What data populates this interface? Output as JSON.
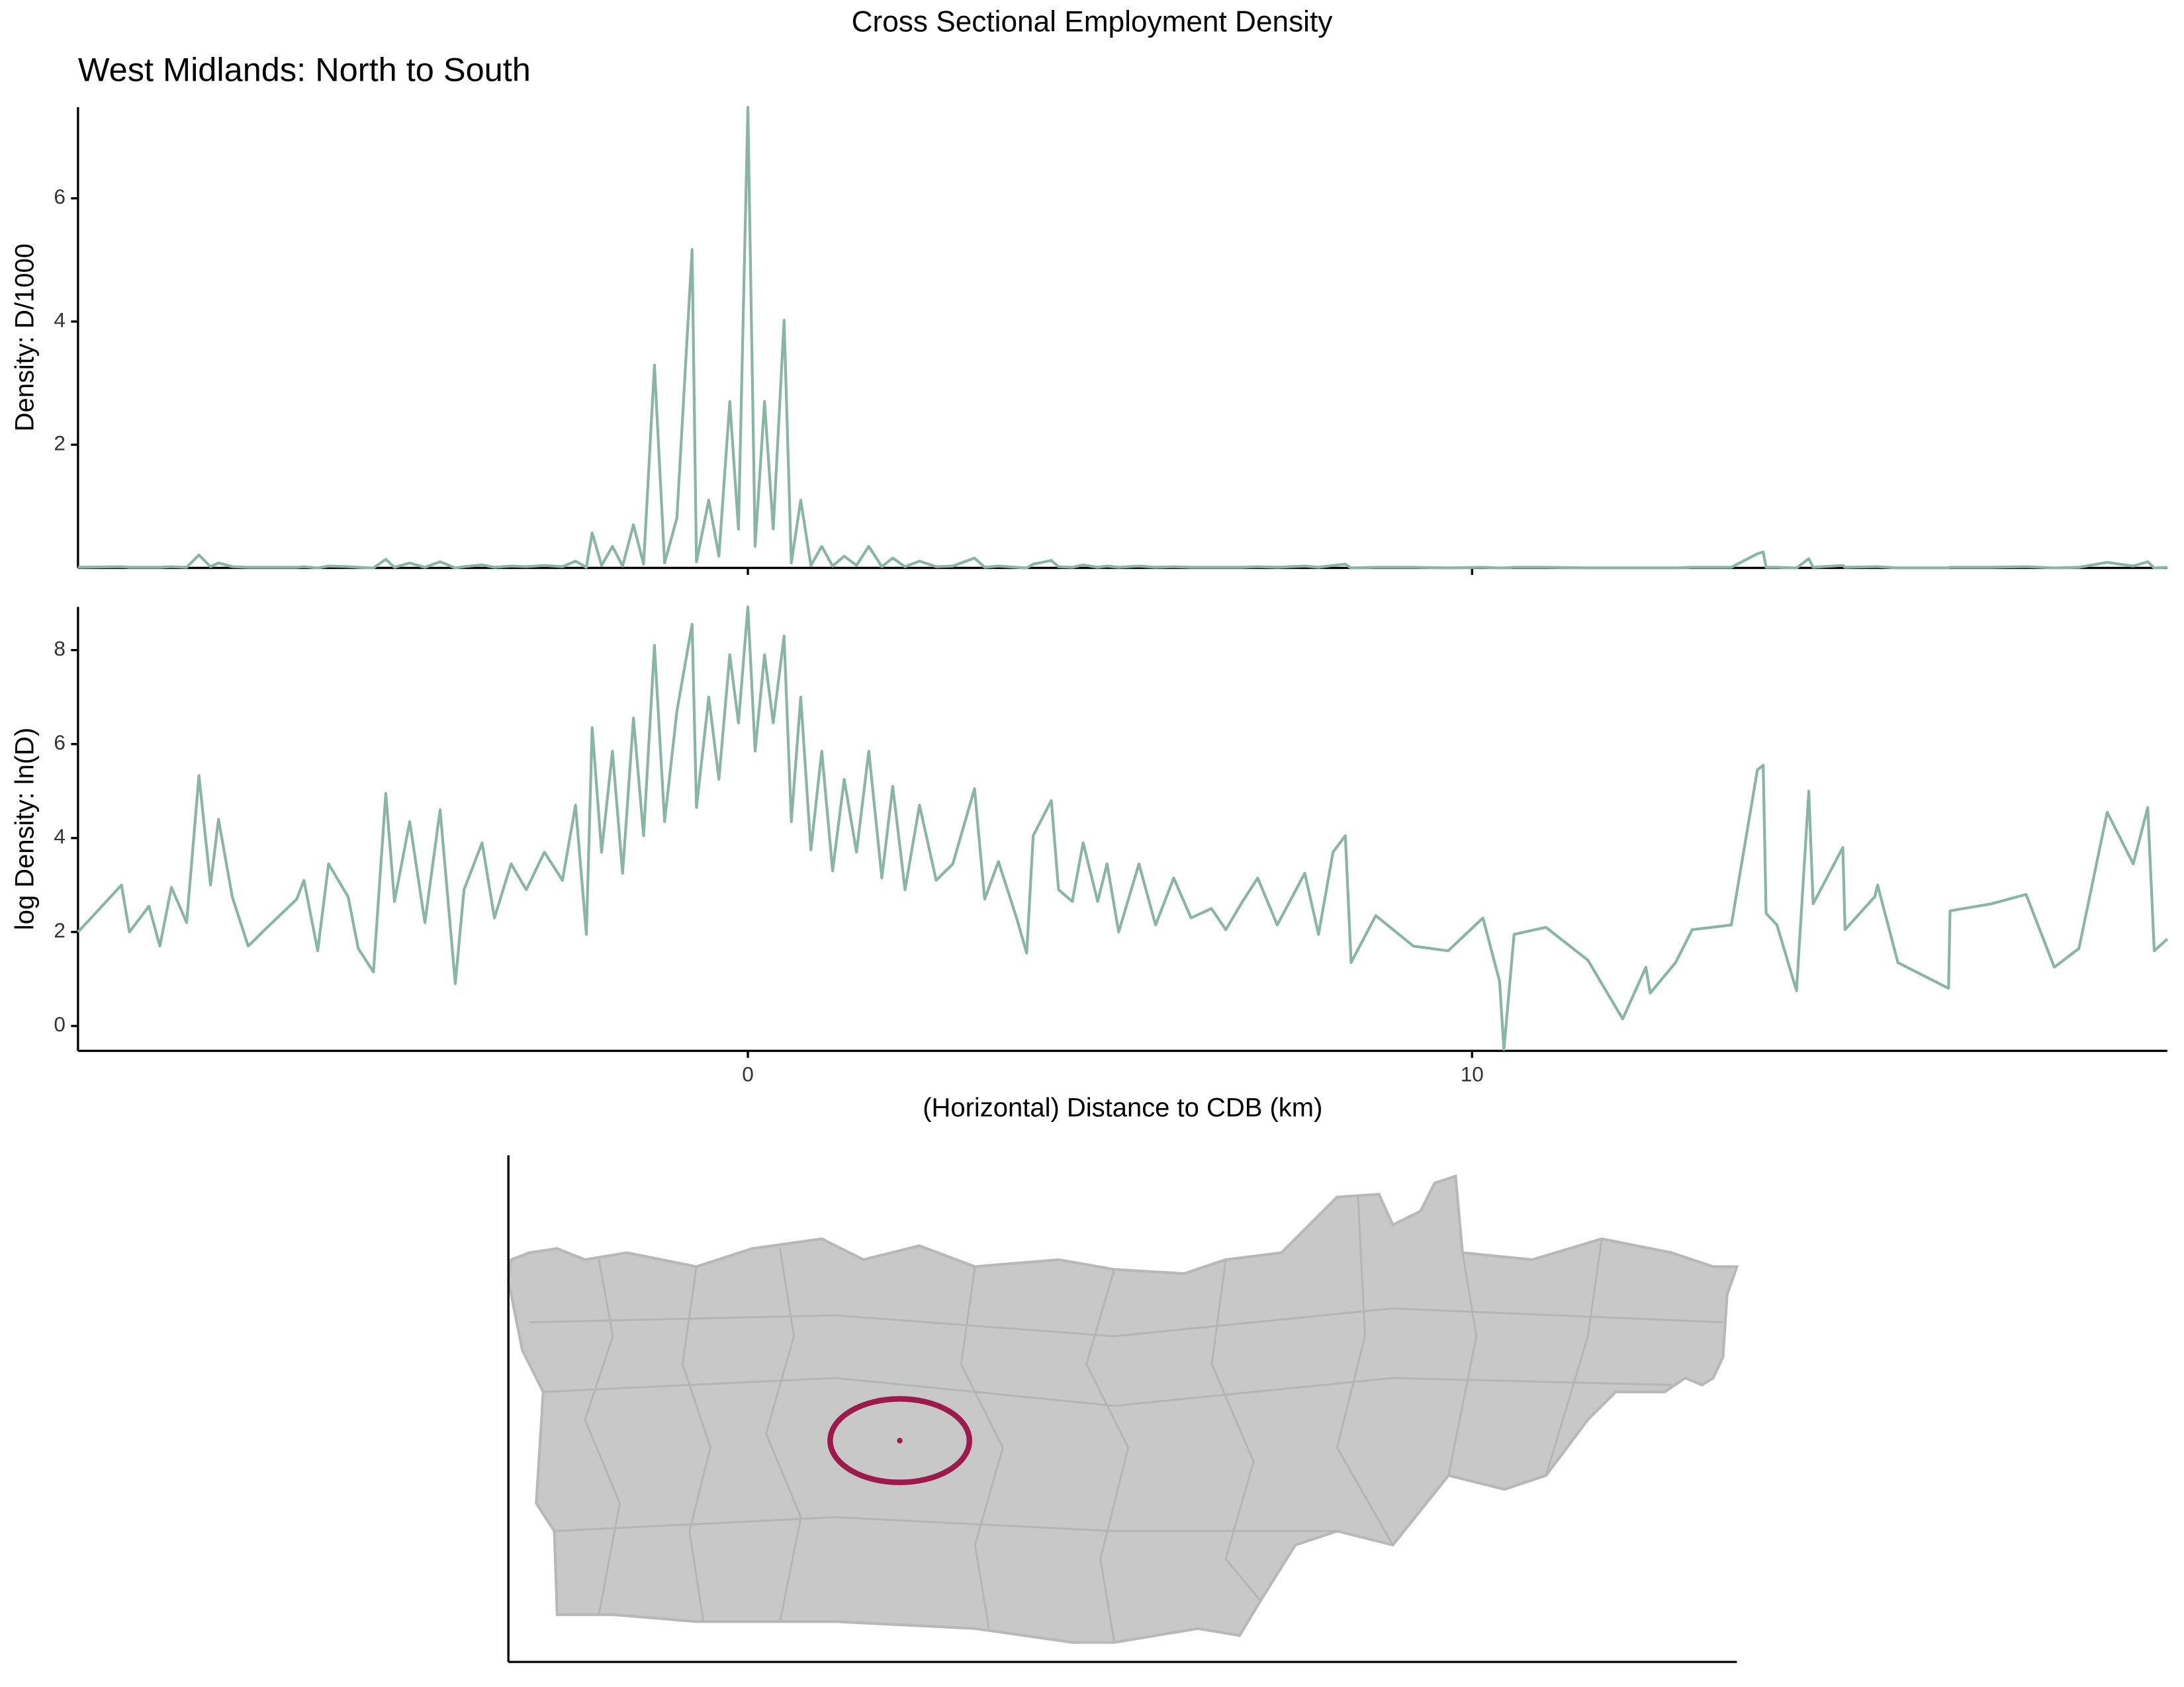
{
  "chart_data": [
    {
      "type": "line",
      "title": "Cross Sectional Employment Density",
      "subtitle": "West Midlands: North to South",
      "y_label": "Density: D/1000",
      "xlim": [
        -9.25,
        19.6
      ],
      "ylim": [
        0,
        7.48
      ],
      "yticks": [
        2,
        4,
        6
      ],
      "x": [
        -9.25,
        -8.65,
        -8.54,
        -8.27,
        -8.12,
        -7.96,
        -7.75,
        -7.58,
        -7.42,
        -7.31,
        -7.12,
        -6.9,
        -6.67,
        -6.23,
        -6.13,
        -5.94,
        -5.79,
        -5.52,
        -5.38,
        -5.17,
        -5.0,
        -4.88,
        -4.67,
        -4.46,
        -4.25,
        -4.04,
        -3.92,
        -3.67,
        -3.5,
        -3.27,
        -3.06,
        -2.81,
        -2.56,
        -2.38,
        -2.23,
        -2.15,
        -2.02,
        -1.87,
        -1.73,
        -1.58,
        -1.44,
        -1.29,
        -1.15,
        -0.98,
        -0.77,
        -0.71,
        -0.54,
        -0.4,
        -0.25,
        -0.13,
        0,
        0.1,
        0.23,
        0.35,
        0.5,
        0.6,
        0.73,
        0.87,
        1.02,
        1.17,
        1.33,
        1.5,
        1.67,
        1.85,
        2.0,
        2.17,
        2.37,
        2.6,
        2.83,
        3.13,
        3.27,
        3.46,
        3.71,
        3.85,
        3.94,
        4.19,
        4.29,
        4.48,
        4.63,
        4.83,
        4.96,
        5.12,
        5.4,
        5.63,
        5.88,
        6.12,
        6.4,
        6.6,
        6.83,
        7.04,
        7.31,
        7.69,
        7.88,
        8.08,
        8.25,
        8.33,
        8.67,
        9.19,
        9.67,
        10.15,
        10.38,
        10.44,
        10.58,
        11.02,
        11.6,
        12.08,
        12.4,
        12.46,
        12.81,
        13.04,
        13.58,
        13.94,
        14.02,
        14.06,
        14.21,
        14.48,
        14.65,
        14.71,
        15.12,
        15.15,
        15.56,
        15.6,
        15.88,
        16.58,
        16.6,
        17.17,
        17.65,
        18.04,
        18.38,
        18.77,
        19.13,
        19.33,
        19.42,
        19.6
      ],
      "series": [
        {
          "color": "#8ab5a5",
          "values": [
            0.01,
            0.02,
            0.01,
            0.01,
            0.01,
            0.02,
            0.01,
            0.21,
            0.02,
            0.08,
            0.02,
            0.01,
            0.01,
            0.01,
            0.02,
            0,
            0.03,
            0.02,
            0.01,
            0,
            0.14,
            0.01,
            0.08,
            0.01,
            0.1,
            0,
            0.02,
            0.05,
            0.01,
            0.03,
            0.02,
            0.04,
            0.02,
            0.11,
            0.01,
            0.57,
            0.04,
            0.35,
            0.03,
            0.7,
            0.06,
            3.29,
            0.08,
            0.81,
            5.17,
            0.1,
            1.1,
            0.19,
            2.7,
            0.63,
            7.48,
            0.35,
            2.7,
            0.63,
            4.02,
            0.08,
            1.1,
            0.04,
            0.35,
            0.03,
            0.19,
            0.04,
            0.35,
            0.02,
            0.16,
            0.02,
            0.11,
            0.02,
            0.03,
            0.16,
            0.01,
            0.03,
            0.01,
            0,
            0.06,
            0.12,
            0.02,
            0.01,
            0.05,
            0.01,
            0.03,
            0.01,
            0.03,
            0.01,
            0.02,
            0.01,
            0.01,
            0.01,
            0.01,
            0.02,
            0.01,
            0.03,
            0.01,
            0.04,
            0.06,
            0,
            0.01,
            0.01,
            0,
            0.01,
            0,
            0,
            0.01,
            0.01,
            0,
            0,
            0,
            0,
            0,
            0.01,
            0.01,
            0.23,
            0.26,
            0.01,
            0.01,
            0,
            0.15,
            0.01,
            0.04,
            0.01,
            0.02,
            0.02,
            0,
            0,
            0.01,
            0.01,
            0.02,
            0,
            0.01,
            0.09,
            0.03,
            0.1,
            0,
            0.01
          ]
        }
      ]
    },
    {
      "type": "line",
      "y_label": "log Density: ln(D)",
      "x_label": "(Horizontal) Distance to CDB (km)",
      "xlim": [
        -9.25,
        19.6
      ],
      "ylim": [
        -0.53,
        8.92
      ],
      "xticks": [
        0,
        10
      ],
      "yticks": [
        0,
        2,
        4,
        6,
        8
      ],
      "x": [
        -9.25,
        -8.65,
        -8.54,
        -8.27,
        -8.12,
        -7.96,
        -7.75,
        -7.58,
        -7.42,
        -7.31,
        -7.12,
        -6.9,
        -6.67,
        -6.23,
        -6.13,
        -5.94,
        -5.79,
        -5.52,
        -5.38,
        -5.17,
        -5.0,
        -4.88,
        -4.67,
        -4.46,
        -4.25,
        -4.04,
        -3.92,
        -3.67,
        -3.5,
        -3.27,
        -3.06,
        -2.81,
        -2.56,
        -2.38,
        -2.23,
        -2.15,
        -2.02,
        -1.87,
        -1.73,
        -1.58,
        -1.44,
        -1.29,
        -1.15,
        -0.98,
        -0.77,
        -0.71,
        -0.54,
        -0.4,
        -0.25,
        -0.13,
        0,
        0.1,
        0.23,
        0.35,
        0.5,
        0.6,
        0.73,
        0.87,
        1.02,
        1.17,
        1.33,
        1.5,
        1.67,
        1.85,
        2.0,
        2.17,
        2.37,
        2.6,
        2.83,
        3.13,
        3.27,
        3.46,
        3.71,
        3.85,
        3.94,
        4.19,
        4.29,
        4.48,
        4.63,
        4.83,
        4.96,
        5.12,
        5.4,
        5.63,
        5.88,
        6.12,
        6.4,
        6.6,
        6.83,
        7.04,
        7.31,
        7.69,
        7.88,
        8.08,
        8.25,
        8.33,
        8.67,
        9.19,
        9.67,
        10.15,
        10.38,
        10.44,
        10.58,
        11.02,
        11.6,
        12.08,
        12.4,
        12.46,
        12.81,
        13.04,
        13.58,
        13.94,
        14.02,
        14.06,
        14.21,
        14.48,
        14.65,
        14.71,
        15.12,
        15.15,
        15.56,
        15.6,
        15.88,
        16.58,
        16.6,
        17.17,
        17.65,
        18.04,
        18.38,
        18.77,
        19.13,
        19.33,
        19.42,
        19.6
      ],
      "series": [
        {
          "color": "#8ab5a5",
          "values": [
            2.0,
            3.0,
            2.0,
            2.55,
            1.7,
            2.95,
            2.2,
            5.33,
            3.0,
            4.4,
            2.75,
            1.7,
            2.05,
            2.7,
            3.1,
            1.6,
            3.45,
            2.75,
            1.65,
            1.15,
            4.95,
            2.65,
            4.35,
            2.2,
            4.6,
            0.9,
            2.9,
            3.9,
            2.3,
            3.45,
            2.9,
            3.7,
            3.1,
            4.7,
            1.95,
            6.35,
            3.7,
            5.85,
            3.25,
            6.55,
            4.05,
            8.1,
            4.35,
            6.7,
            8.55,
            4.65,
            7.0,
            5.25,
            7.9,
            6.45,
            8.92,
            5.85,
            7.9,
            6.45,
            8.3,
            4.35,
            7.0,
            3.75,
            5.85,
            3.3,
            5.25,
            3.7,
            5.85,
            3.15,
            5.1,
            2.9,
            4.7,
            3.1,
            3.45,
            5.05,
            2.7,
            3.5,
            2.3,
            1.55,
            4.05,
            4.8,
            2.9,
            2.65,
            3.9,
            2.65,
            3.45,
            2.0,
            3.45,
            2.15,
            3.15,
            2.3,
            2.5,
            2.05,
            2.65,
            3.15,
            2.15,
            3.25,
            1.95,
            3.7,
            4.05,
            1.35,
            2.35,
            1.7,
            1.6,
            2.3,
            0.95,
            -0.5,
            1.95,
            2.1,
            1.4,
            0.15,
            1.25,
            0.7,
            1.35,
            2.05,
            2.15,
            5.45,
            5.55,
            2.4,
            2.15,
            0.75,
            5.0,
            2.6,
            3.8,
            2.05,
            2.75,
            3.0,
            1.35,
            0.8,
            2.45,
            2.6,
            2.8,
            1.25,
            1.65,
            4.55,
            3.45,
            4.65,
            1.6,
            1.85
          ]
        }
      ]
    }
  ]
}
